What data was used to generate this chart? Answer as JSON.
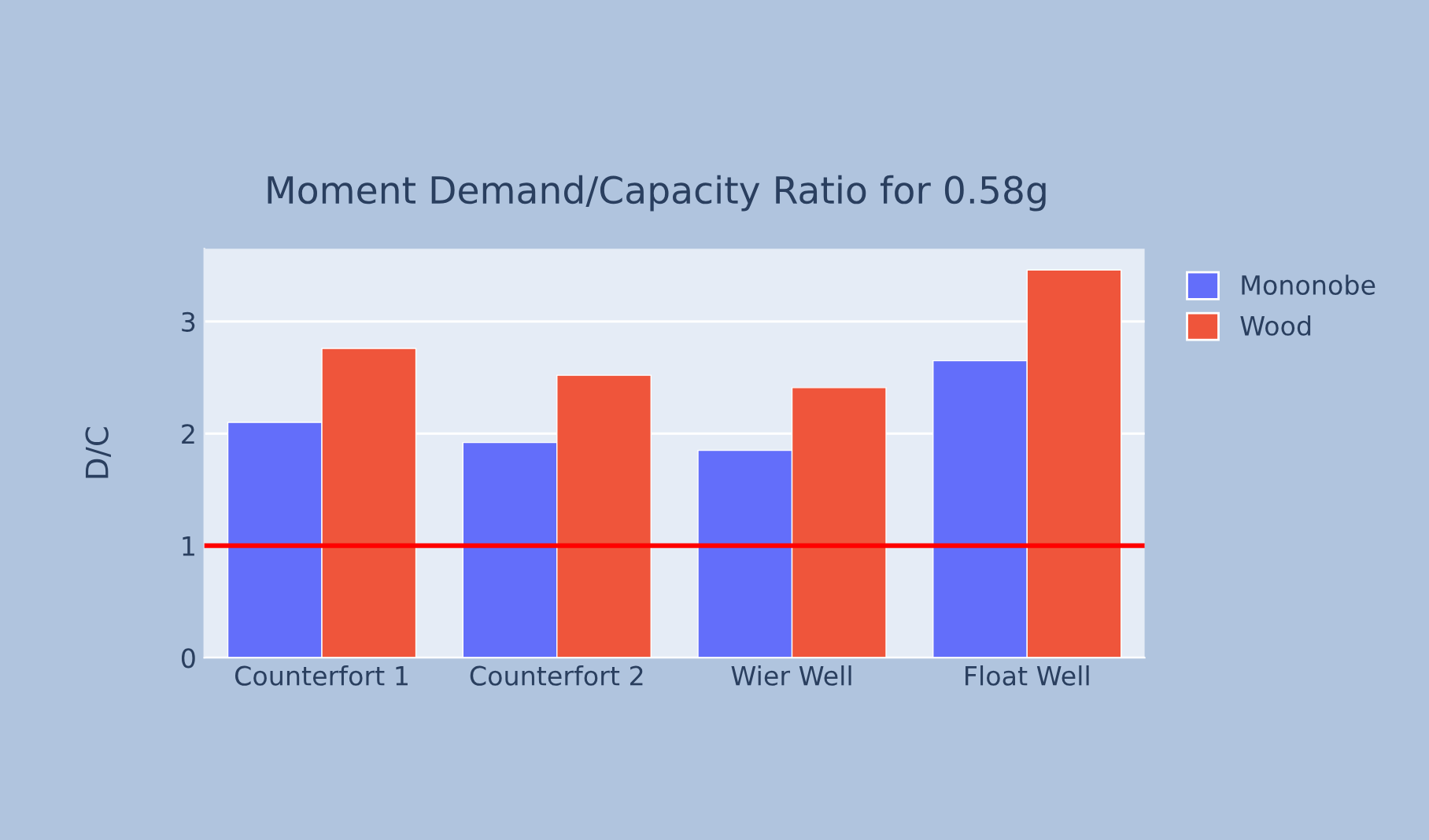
{
  "chart_data": {
    "type": "bar",
    "title": "Moment Demand/Capacity Ratio for 0.58g",
    "ylabel": "D/C",
    "categories": [
      "Counterfort 1",
      "Counterfort 2",
      "Wier Well",
      "Float Well"
    ],
    "series": [
      {
        "name": "Mononobe",
        "color": "#636efa",
        "values": [
          2.1,
          1.92,
          1.85,
          2.65
        ]
      },
      {
        "name": "Wood",
        "color": "#ef553b",
        "values": [
          2.76,
          2.52,
          2.41,
          3.46
        ]
      }
    ],
    "ylim": [
      0,
      3.65
    ],
    "yticks": [
      0,
      1,
      2,
      3
    ],
    "grid": "y",
    "legend": "top right",
    "ref_lines": [
      {
        "axis": "y",
        "value": 1,
        "color": "#ff0000",
        "line_style": "solid"
      }
    ]
  }
}
